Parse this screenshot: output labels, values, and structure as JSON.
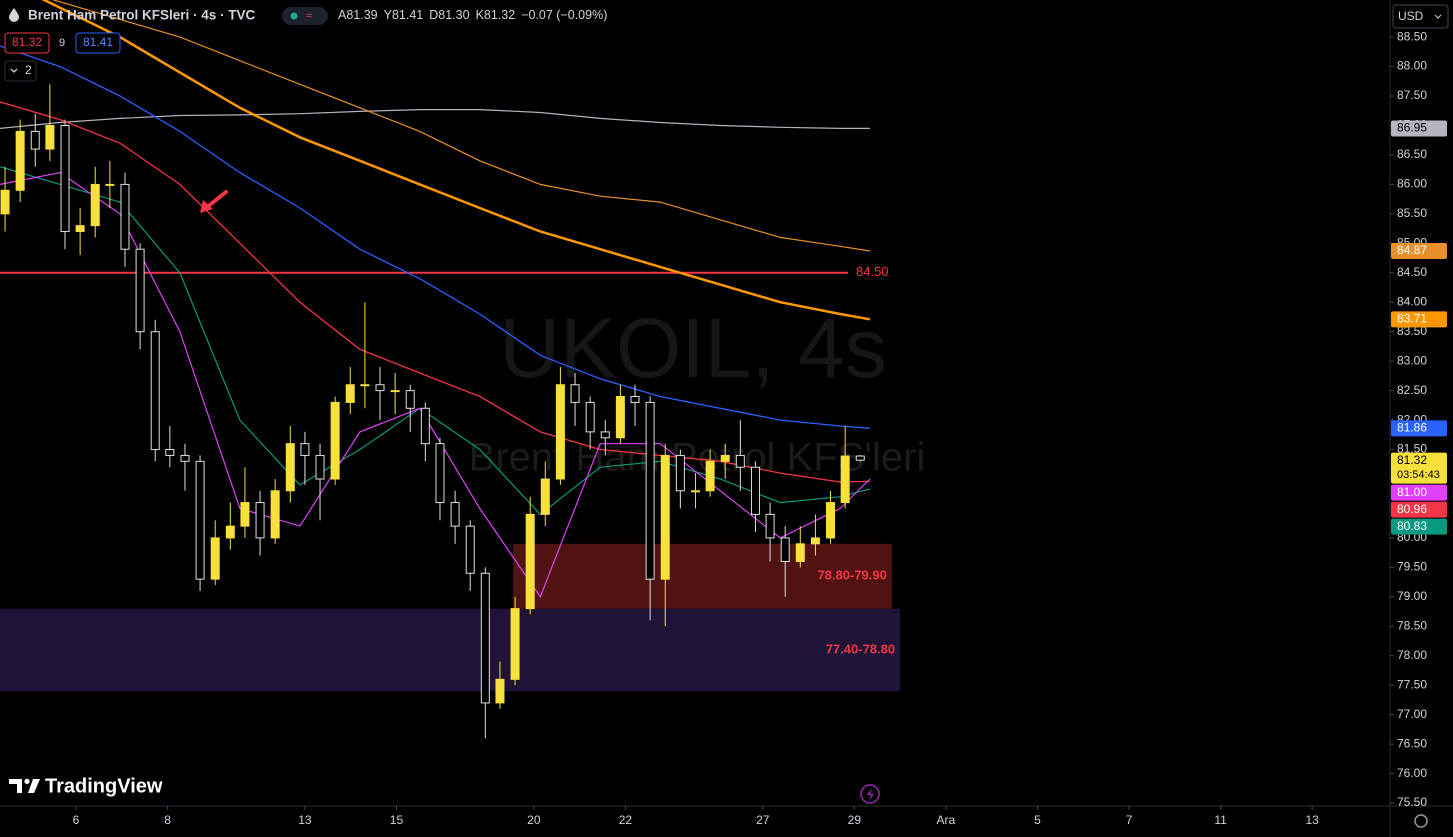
{
  "chart_data": {
    "type": "candlestick",
    "symbol": "Brent Ham Petrol KFSleri · 4s · TVC",
    "ohlc_legend": [
      {
        "key": "A",
        "value": "81.39"
      },
      {
        "key": "Y",
        "value": "81.41"
      },
      {
        "key": "D",
        "value": "81.30"
      },
      {
        "key": "K",
        "value": "81.32"
      }
    ],
    "change": "−0.07 (−0.09%)",
    "bid": "81.32",
    "spread": "9",
    "ask": "81.41",
    "indicators_collapsed": "2",
    "watermark": {
      "title": "UKOIL, 4s",
      "subtitle": "Brent Ham Petrol KFS'leri"
    },
    "logo": "TradingView",
    "currency": "USD",
    "grid": false,
    "up_color": "#f7e03c",
    "down_color": "#e0e0e0",
    "xlim": [
      -1.66,
      28.7
    ],
    "ylim": [
      75.45,
      89.13
    ],
    "xticks": [
      {
        "value": 0,
        "label": "6"
      },
      {
        "value": 2,
        "label": "8"
      },
      {
        "value": 5,
        "label": "13"
      },
      {
        "value": 7,
        "label": "15"
      },
      {
        "value": 10,
        "label": "20"
      },
      {
        "value": 12,
        "label": "22"
      },
      {
        "value": 15,
        "label": "27"
      },
      {
        "value": 17,
        "label": "29"
      },
      {
        "value": 19,
        "label": "Ara"
      },
      {
        "value": 21,
        "label": "5"
      },
      {
        "value": 23,
        "label": "7"
      },
      {
        "value": 25,
        "label": "11"
      },
      {
        "value": 27,
        "label": "13"
      }
    ],
    "yticks": [
      {
        "value": 75.5,
        "label": "75.50"
      },
      {
        "value": 76,
        "label": "76.00"
      },
      {
        "value": 76.5,
        "label": "76.50"
      },
      {
        "value": 77,
        "label": "77.00"
      },
      {
        "value": 77.5,
        "label": "77.50"
      },
      {
        "value": 78,
        "label": "78.00"
      },
      {
        "value": 78.5,
        "label": "78.50"
      },
      {
        "value": 79,
        "label": "79.00"
      },
      {
        "value": 79.5,
        "label": "79.50"
      },
      {
        "value": 80,
        "label": "80.00"
      },
      {
        "value": 80.5,
        "label": "80.50"
      },
      {
        "value": 81,
        "label": "81.00"
      },
      {
        "value": 81.5,
        "label": "81.50"
      },
      {
        "value": 82,
        "label": "82.00"
      },
      {
        "value": 82.5,
        "label": "82.50"
      },
      {
        "value": 83,
        "label": "83.00"
      },
      {
        "value": 83.5,
        "label": "83.50"
      },
      {
        "value": 84,
        "label": "84.00"
      },
      {
        "value": 84.5,
        "label": "84.50"
      },
      {
        "value": 85,
        "label": "85.00"
      },
      {
        "value": 85.5,
        "label": "85.50"
      },
      {
        "value": 86,
        "label": "86.00"
      },
      {
        "value": 86.5,
        "label": "86.50"
      },
      {
        "value": 87,
        "label": "87.00"
      },
      {
        "value": 87.5,
        "label": "87.50"
      },
      {
        "value": 88,
        "label": "88.00"
      },
      {
        "value": 88.5,
        "label": "88.50"
      }
    ],
    "candles": {
      "x": [
        -1.55,
        -1.22,
        -0.89,
        -0.57,
        -0.24,
        0.09,
        0.42,
        0.74,
        1.07,
        1.4,
        1.73,
        2.05,
        2.38,
        2.71,
        3.04,
        3.37,
        3.69,
        4.02,
        4.35,
        4.68,
        5.0,
        5.33,
        5.66,
        5.99,
        6.31,
        6.64,
        6.97,
        7.3,
        7.63,
        7.95,
        8.28,
        8.61,
        8.94,
        9.26,
        9.59,
        9.92,
        10.25,
        10.58,
        10.9,
        11.23,
        11.56,
        11.89,
        12.21,
        12.54,
        12.87,
        13.2,
        13.53,
        13.85,
        14.18,
        14.51,
        14.84,
        15.16,
        15.49,
        15.82,
        16.15,
        16.48,
        16.8,
        17.13
      ],
      "open": [
        85.5,
        85.9,
        86.9,
        86.6,
        87.0,
        85.2,
        85.3,
        86.0,
        86.0,
        84.9,
        83.5,
        81.5,
        81.4,
        81.3,
        79.3,
        80.0,
        80.2,
        80.6,
        80.0,
        80.8,
        81.6,
        81.4,
        81.0,
        82.3,
        82.6,
        82.6,
        82.5,
        82.5,
        82.2,
        81.6,
        80.6,
        80.2,
        79.4,
        77.2,
        77.6,
        78.8,
        80.4,
        81.0,
        82.6,
        82.3,
        81.8,
        81.7,
        82.4,
        82.3,
        79.3,
        81.4,
        80.8,
        80.8,
        81.3,
        81.4,
        81.2,
        80.4,
        80.0,
        79.6,
        79.9,
        80.0,
        80.6,
        81.39
      ],
      "high": [
        86.3,
        87.1,
        87.2,
        87.7,
        87.1,
        85.6,
        86.3,
        86.4,
        86.2,
        85.0,
        83.7,
        81.9,
        81.6,
        81.4,
        80.3,
        80.6,
        81.2,
        80.8,
        81.0,
        81.9,
        81.8,
        81.6,
        82.4,
        82.9,
        84.0,
        82.9,
        82.8,
        82.6,
        82.3,
        81.7,
        80.8,
        80.3,
        79.5,
        77.9,
        79.0,
        80.7,
        81.3,
        82.9,
        82.8,
        82.4,
        82.0,
        82.6,
        82.6,
        82.4,
        81.6,
        81.5,
        81.1,
        81.5,
        81.6,
        82.0,
        81.3,
        80.6,
        80.2,
        80.2,
        80.4,
        80.8,
        81.9,
        81.41
      ],
      "low": [
        85.2,
        85.7,
        86.3,
        86.4,
        84.9,
        84.8,
        85.1,
        85.6,
        84.6,
        83.2,
        81.3,
        81.2,
        80.8,
        79.1,
        79.2,
        79.8,
        80.0,
        79.7,
        79.9,
        80.6,
        80.9,
        80.3,
        80.9,
        82.1,
        82.2,
        82.0,
        82.1,
        81.8,
        81.3,
        80.3,
        79.9,
        79.1,
        76.6,
        77.1,
        77.5,
        78.7,
        80.2,
        80.9,
        81.9,
        81.5,
        81.4,
        81.6,
        81.9,
        78.6,
        78.5,
        80.5,
        80.5,
        80.7,
        81.0,
        80.8,
        80.1,
        79.6,
        79.0,
        79.5,
        79.7,
        79.9,
        80.5,
        81.3
      ],
      "close": [
        85.9,
        86.9,
        86.6,
        87.0,
        85.2,
        85.3,
        86.0,
        86.0,
        84.9,
        83.5,
        81.5,
        81.4,
        81.3,
        79.3,
        80.0,
        80.2,
        80.6,
        80.0,
        80.8,
        81.6,
        81.4,
        81.0,
        82.3,
        82.6,
        82.6,
        82.5,
        82.5,
        82.2,
        81.6,
        80.6,
        80.2,
        79.4,
        77.2,
        77.6,
        78.8,
        80.4,
        81.0,
        82.6,
        82.3,
        81.8,
        81.7,
        82.4,
        82.3,
        79.3,
        81.4,
        80.8,
        80.8,
        81.3,
        81.4,
        81.2,
        80.4,
        80.0,
        79.6,
        79.9,
        80.0,
        80.6,
        81.39,
        81.32
      ],
      "last_label": "81.32",
      "countdown": "03:54:43"
    },
    "moving_averages": [
      {
        "color": "#b2b5be",
        "width": 1.2,
        "last_label": "86.95",
        "x": [
          -1.66,
          -0.35,
          0.96,
          2.27,
          3.58,
          4.89,
          6.2,
          7.51,
          8.82,
          10.14,
          11.45,
          12.76,
          14.07,
          15.38,
          16.69,
          17.34
        ],
        "values": [
          86.95,
          87.05,
          87.12,
          87.17,
          87.18,
          87.2,
          87.24,
          87.27,
          87.27,
          87.22,
          87.12,
          87.05,
          87.0,
          86.97,
          86.95,
          86.95
        ]
      },
      {
        "color": "#e8902a",
        "width": 1.2,
        "last_label": "84.87",
        "x": [
          -1.66,
          -0.35,
          0.96,
          2.27,
          3.58,
          4.89,
          6.2,
          7.51,
          8.82,
          10.14,
          11.45,
          12.76,
          14.07,
          15.38,
          16.69,
          17.34
        ],
        "values": [
          89.4,
          89.1,
          88.8,
          88.5,
          88.1,
          87.7,
          87.3,
          86.9,
          86.4,
          86.0,
          85.8,
          85.7,
          85.4,
          85.1,
          84.95,
          84.87
        ]
      },
      {
        "color": "#ff9800",
        "width": 2.5,
        "last_label": "83.71",
        "x": [
          -1.66,
          -0.35,
          0.96,
          2.27,
          3.58,
          4.89,
          6.2,
          7.51,
          8.82,
          10.14,
          11.45,
          12.76,
          14.07,
          15.38,
          16.69,
          17.34
        ],
        "values": [
          89.5,
          89.0,
          88.5,
          87.9,
          87.3,
          86.8,
          86.4,
          86.0,
          85.6,
          85.2,
          84.9,
          84.6,
          84.3,
          84.0,
          83.8,
          83.71
        ]
      },
      {
        "color": "#2962ff",
        "width": 1.3,
        "last_label": "81.86",
        "x": [
          -1.66,
          -0.35,
          0.96,
          2.27,
          3.58,
          4.89,
          6.2,
          7.51,
          8.82,
          10.14,
          11.45,
          12.76,
          14.07,
          15.38,
          16.69,
          17.34
        ],
        "values": [
          88.35,
          88.0,
          87.5,
          86.9,
          86.2,
          85.6,
          84.9,
          84.4,
          83.8,
          83.1,
          82.7,
          82.4,
          82.2,
          82.0,
          81.9,
          81.86
        ]
      },
      {
        "color": "#f23645",
        "width": 1.3,
        "last_label": "80.96",
        "x": [
          -1.66,
          -0.35,
          0.96,
          2.27,
          3.58,
          4.89,
          6.2,
          7.51,
          8.82,
          10.14,
          11.45,
          12.76,
          14.07,
          15.38,
          16.69,
          17.34
        ],
        "values": [
          87.4,
          87.1,
          86.7,
          86.0,
          85.0,
          84.0,
          83.2,
          82.8,
          82.4,
          81.8,
          81.5,
          81.4,
          81.3,
          81.1,
          80.95,
          80.96
        ]
      },
      {
        "color": "#089981",
        "width": 1.2,
        "last_label": "80.83",
        "x": [
          -1.66,
          -0.35,
          0.96,
          2.27,
          3.58,
          4.89,
          6.2,
          7.51,
          8.82,
          10.14,
          11.45,
          12.76,
          14.07,
          15.38,
          16.69,
          17.34
        ],
        "values": [
          86.3,
          86.0,
          85.7,
          84.5,
          82.0,
          80.9,
          81.5,
          82.2,
          81.5,
          80.4,
          81.2,
          81.3,
          81.0,
          80.6,
          80.7,
          80.83
        ]
      },
      {
        "color": "#e040fb",
        "width": 1.2,
        "last_label": "81.00",
        "x": [
          -1.66,
          -0.35,
          0.96,
          2.27,
          3.58,
          4.89,
          6.2,
          7.51,
          8.82,
          10.14,
          11.45,
          12.76,
          14.07,
          15.38,
          16.69,
          17.34
        ],
        "values": [
          86.0,
          86.2,
          85.5,
          83.5,
          80.5,
          80.2,
          81.8,
          82.2,
          80.5,
          79.0,
          81.6,
          81.6,
          80.8,
          80.0,
          80.5,
          81.0
        ]
      }
    ],
    "zones": [
      {
        "low": 78.8,
        "high": 79.9,
        "x": [
          9.55,
          17.82
        ],
        "label": "78.80-79.90",
        "color": "#5a1414"
      },
      {
        "low": 77.4,
        "high": 78.8,
        "x": [
          -1.66,
          18.0
        ],
        "label": "77.40-78.80",
        "color": "#22153d"
      }
    ],
    "hline": {
      "value": 84.5,
      "label": "84.50",
      "color": "#f23645"
    }
  }
}
